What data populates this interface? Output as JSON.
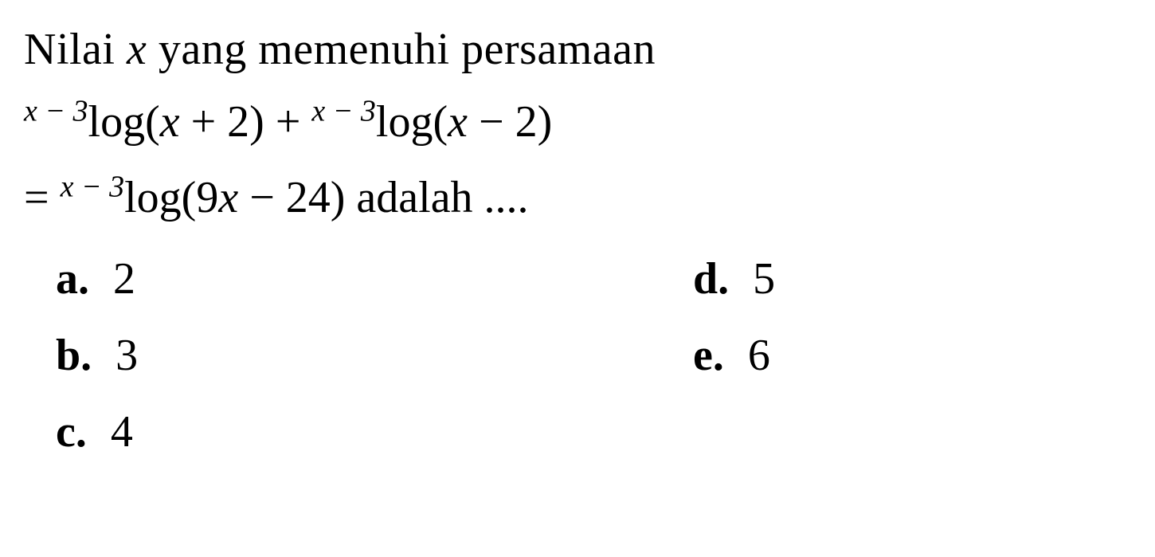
{
  "question": {
    "line1_part1": "Nilai ",
    "line1_var": "x",
    "line1_part2": " yang memenuhi persamaan",
    "line2_sup1": "x − 3",
    "line2_log1": "log(",
    "line2_arg1a": "x",
    "line2_arg1b": " + 2) + ",
    "line2_sup2": "x − 3",
    "line2_log2": "log(",
    "line2_arg2a": "x",
    "line2_arg2b": " − 2)",
    "line3_eq": "= ",
    "line3_sup": "x − 3",
    "line3_log": "log(9",
    "line3_arg_a": "x",
    "line3_arg_b": " − 24) adalah ...."
  },
  "options": {
    "a": {
      "label": "a.",
      "value": "2"
    },
    "b": {
      "label": "b.",
      "value": "3"
    },
    "c": {
      "label": "c.",
      "value": "4"
    },
    "d": {
      "label": "d.",
      "value": "5"
    },
    "e": {
      "label": "e.",
      "value": "6"
    }
  },
  "styling": {
    "font_family": "Times New Roman",
    "question_fontsize": 56,
    "superscript_fontsize": 38,
    "text_color": "#000000",
    "background_color": "#ffffff"
  }
}
